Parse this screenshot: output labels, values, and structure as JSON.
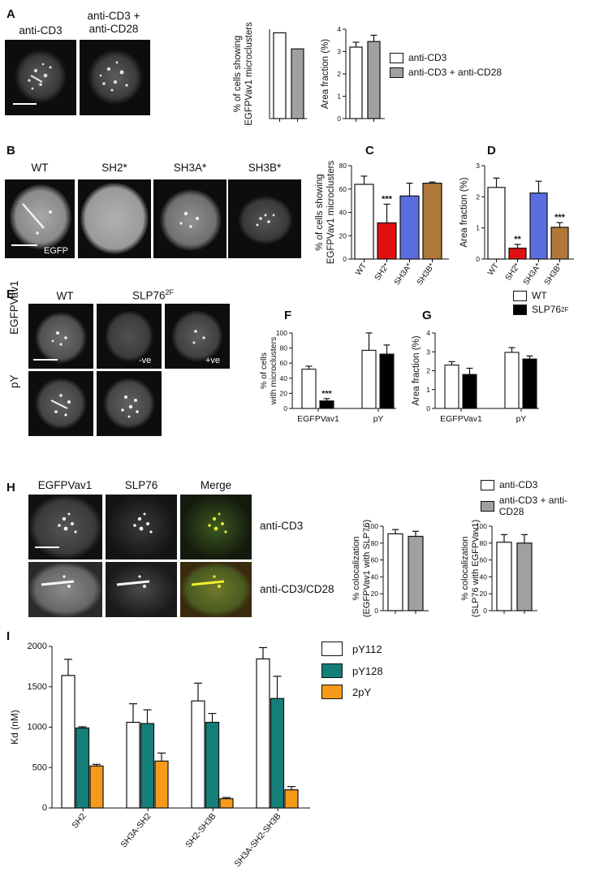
{
  "colors": {
    "white": "#ffffff",
    "gray": "#a0a0a0",
    "black": "#000000",
    "red": "#e01010",
    "blue": "#5b6ee0",
    "brown": "#b07838",
    "teal": "#147f79",
    "orange": "#f59a1b"
  },
  "panel_A": {
    "label": "A",
    "image_labels": [
      "anti-CD3",
      "anti-CD3 +",
      "anti-CD28"
    ],
    "legend": [
      "anti-CD3",
      "anti-CD3 + anti-CD28"
    ]
  },
  "panel_B": {
    "label": "B",
    "image_labels": [
      "WT",
      "SH2*",
      "SH3A*",
      "SH3B*"
    ],
    "inset": "EGFP"
  },
  "panel_C": {
    "label": "C"
  },
  "panel_D": {
    "label": "D"
  },
  "panel_E": {
    "label": "E",
    "col_labels": [
      "WT",
      "SLP76",
      "2F"
    ],
    "row_labels": [
      "EGFPVav1",
      "pY"
    ],
    "insets": [
      "-ve",
      "+ve"
    ]
  },
  "panel_F": {
    "label": "F"
  },
  "panel_G": {
    "label": "G",
    "legend": [
      "WT",
      "SLP76",
      "2F"
    ]
  },
  "panel_H": {
    "label": "H",
    "col_labels": [
      "EGFPVav1",
      "SLP76",
      "Merge"
    ],
    "row_labels": [
      "anti-CD3",
      "anti-CD3/CD28"
    ],
    "legend": [
      "anti-CD3",
      "anti-CD3 + anti-CD28"
    ]
  },
  "panel_I": {
    "label": "I",
    "legend": [
      "pY112",
      "pY128",
      "2pY"
    ]
  },
  "chart_data": [
    {
      "id": "A1",
      "type": "bar",
      "ylabel": "% of cells showing EGFPVav1 microclusters",
      "categories": [
        "anti-CD3",
        "anti-CD3 + anti-CD28"
      ],
      "values": [
        48,
        39
      ],
      "ylim": [
        0,
        50
      ],
      "yticks": [],
      "colors": [
        "#ffffff",
        "#a0a0a0"
      ]
    },
    {
      "id": "A2",
      "type": "bar",
      "ylabel": "Area fraction (%)",
      "categories": [
        "anti-CD3",
        "anti-CD3 + anti-CD28"
      ],
      "values": [
        3.2,
        3.45
      ],
      "errors": [
        0.22,
        0.28
      ],
      "ylim": [
        0,
        4
      ],
      "yticks": [
        0,
        1,
        2,
        3,
        4
      ],
      "colors": [
        "#ffffff",
        "#a0a0a0"
      ]
    },
    {
      "id": "C",
      "type": "bar",
      "ylabel": "% of cells showing EGFPVav1 microclusters",
      "categories": [
        "WT",
        "SH2*",
        "SH3A*",
        "SH3B*"
      ],
      "values": [
        64,
        31,
        54,
        65
      ],
      "errors": [
        7,
        16,
        11,
        1
      ],
      "ylim": [
        0,
        80
      ],
      "yticks": [
        0,
        20,
        40,
        60,
        80
      ],
      "colors": [
        "#ffffff",
        "#e01010",
        "#5b6ee0",
        "#b07838"
      ],
      "annotations": [
        "",
        "***",
        "",
        ""
      ]
    },
    {
      "id": "D",
      "type": "bar",
      "ylabel": "Area fraction (%)",
      "categories": [
        "WT",
        "SH2*",
        "SH3A*",
        "SH3B*"
      ],
      "values": [
        2.3,
        0.35,
        2.12,
        1.02
      ],
      "errors": [
        0.3,
        0.12,
        0.38,
        0.15
      ],
      "ylim": [
        0,
        3
      ],
      "yticks": [
        0,
        1,
        2,
        3
      ],
      "colors": [
        "#ffffff",
        "#e01010",
        "#5b6ee0",
        "#b07838"
      ],
      "annotations": [
        "",
        "**",
        "",
        "***"
      ]
    },
    {
      "id": "F",
      "type": "bar",
      "ylabel": "% of cells with microclusters",
      "categories": [
        "EGFPVav1",
        "pY"
      ],
      "series": [
        {
          "values": [
            52,
            77
          ],
          "errors": [
            4,
            23
          ],
          "color": "#ffffff"
        },
        {
          "values": [
            10,
            72
          ],
          "errors": [
            3,
            12
          ],
          "color": "#000000"
        }
      ],
      "ylim": [
        0,
        100
      ],
      "yticks": [
        0,
        20,
        40,
        60,
        80,
        100
      ],
      "annotations": [
        [
          "",
          ""
        ],
        [
          "***",
          ""
        ]
      ]
    },
    {
      "id": "G",
      "type": "bar",
      "ylabel": "Area fraction (%)",
      "categories": [
        "EGFPVav1",
        "pY"
      ],
      "series": [
        {
          "values": [
            2.3,
            2.97
          ],
          "errors": [
            0.18,
            0.25
          ],
          "color": "#ffffff"
        },
        {
          "values": [
            1.8,
            2.62
          ],
          "errors": [
            0.33,
            0.16
          ],
          "color": "#000000"
        }
      ],
      "ylim": [
        0,
        4
      ],
      "yticks": [
        0,
        1,
        2,
        3,
        4
      ]
    },
    {
      "id": "H1",
      "type": "bar",
      "ylabel": "% colocalization",
      "ylabel2": "(EGFPVav1 with SLP76)",
      "categories": [
        "anti-CD3",
        "anti-CD3 + anti-CD28"
      ],
      "values": [
        91,
        88
      ],
      "errors": [
        5,
        6
      ],
      "ylim": [
        0,
        100
      ],
      "yticks": [
        0,
        20,
        40,
        60,
        80,
        100
      ],
      "colors": [
        "#ffffff",
        "#a0a0a0"
      ]
    },
    {
      "id": "H2",
      "type": "bar",
      "ylabel": "% colocalization",
      "ylabel2": "(SLP76 with EGFPVav1)",
      "categories": [
        "anti-CD3",
        "anti-CD3 + anti-CD28"
      ],
      "values": [
        81,
        80
      ],
      "errors": [
        9,
        10
      ],
      "ylim": [
        0,
        100
      ],
      "yticks": [
        0,
        20,
        40,
        60,
        80,
        100
      ],
      "colors": [
        "#ffffff",
        "#a0a0a0"
      ]
    },
    {
      "id": "I",
      "type": "bar",
      "ylabel": "Kd (nM)",
      "categories": [
        "SH2",
        "SH3A-SH2",
        "SH2-SH3B",
        "SH3A-SH2-SH3B"
      ],
      "series": [
        {
          "name": "pY112",
          "values": [
            1640,
            1060,
            1325,
            1845
          ],
          "errors": [
            200,
            230,
            220,
            140
          ],
          "color": "#ffffff"
        },
        {
          "name": "pY128",
          "values": [
            990,
            1045,
            1060,
            1355
          ],
          "errors": [
            15,
            170,
            110,
            275
          ],
          "color": "#147f79"
        },
        {
          "name": "2pY",
          "values": [
            520,
            580,
            115,
            225
          ],
          "errors": [
            20,
            100,
            15,
            40
          ],
          "color": "#f59a1b"
        }
      ],
      "ylim": [
        0,
        2000
      ],
      "yticks": [
        0,
        500,
        1000,
        1500,
        2000
      ]
    }
  ]
}
